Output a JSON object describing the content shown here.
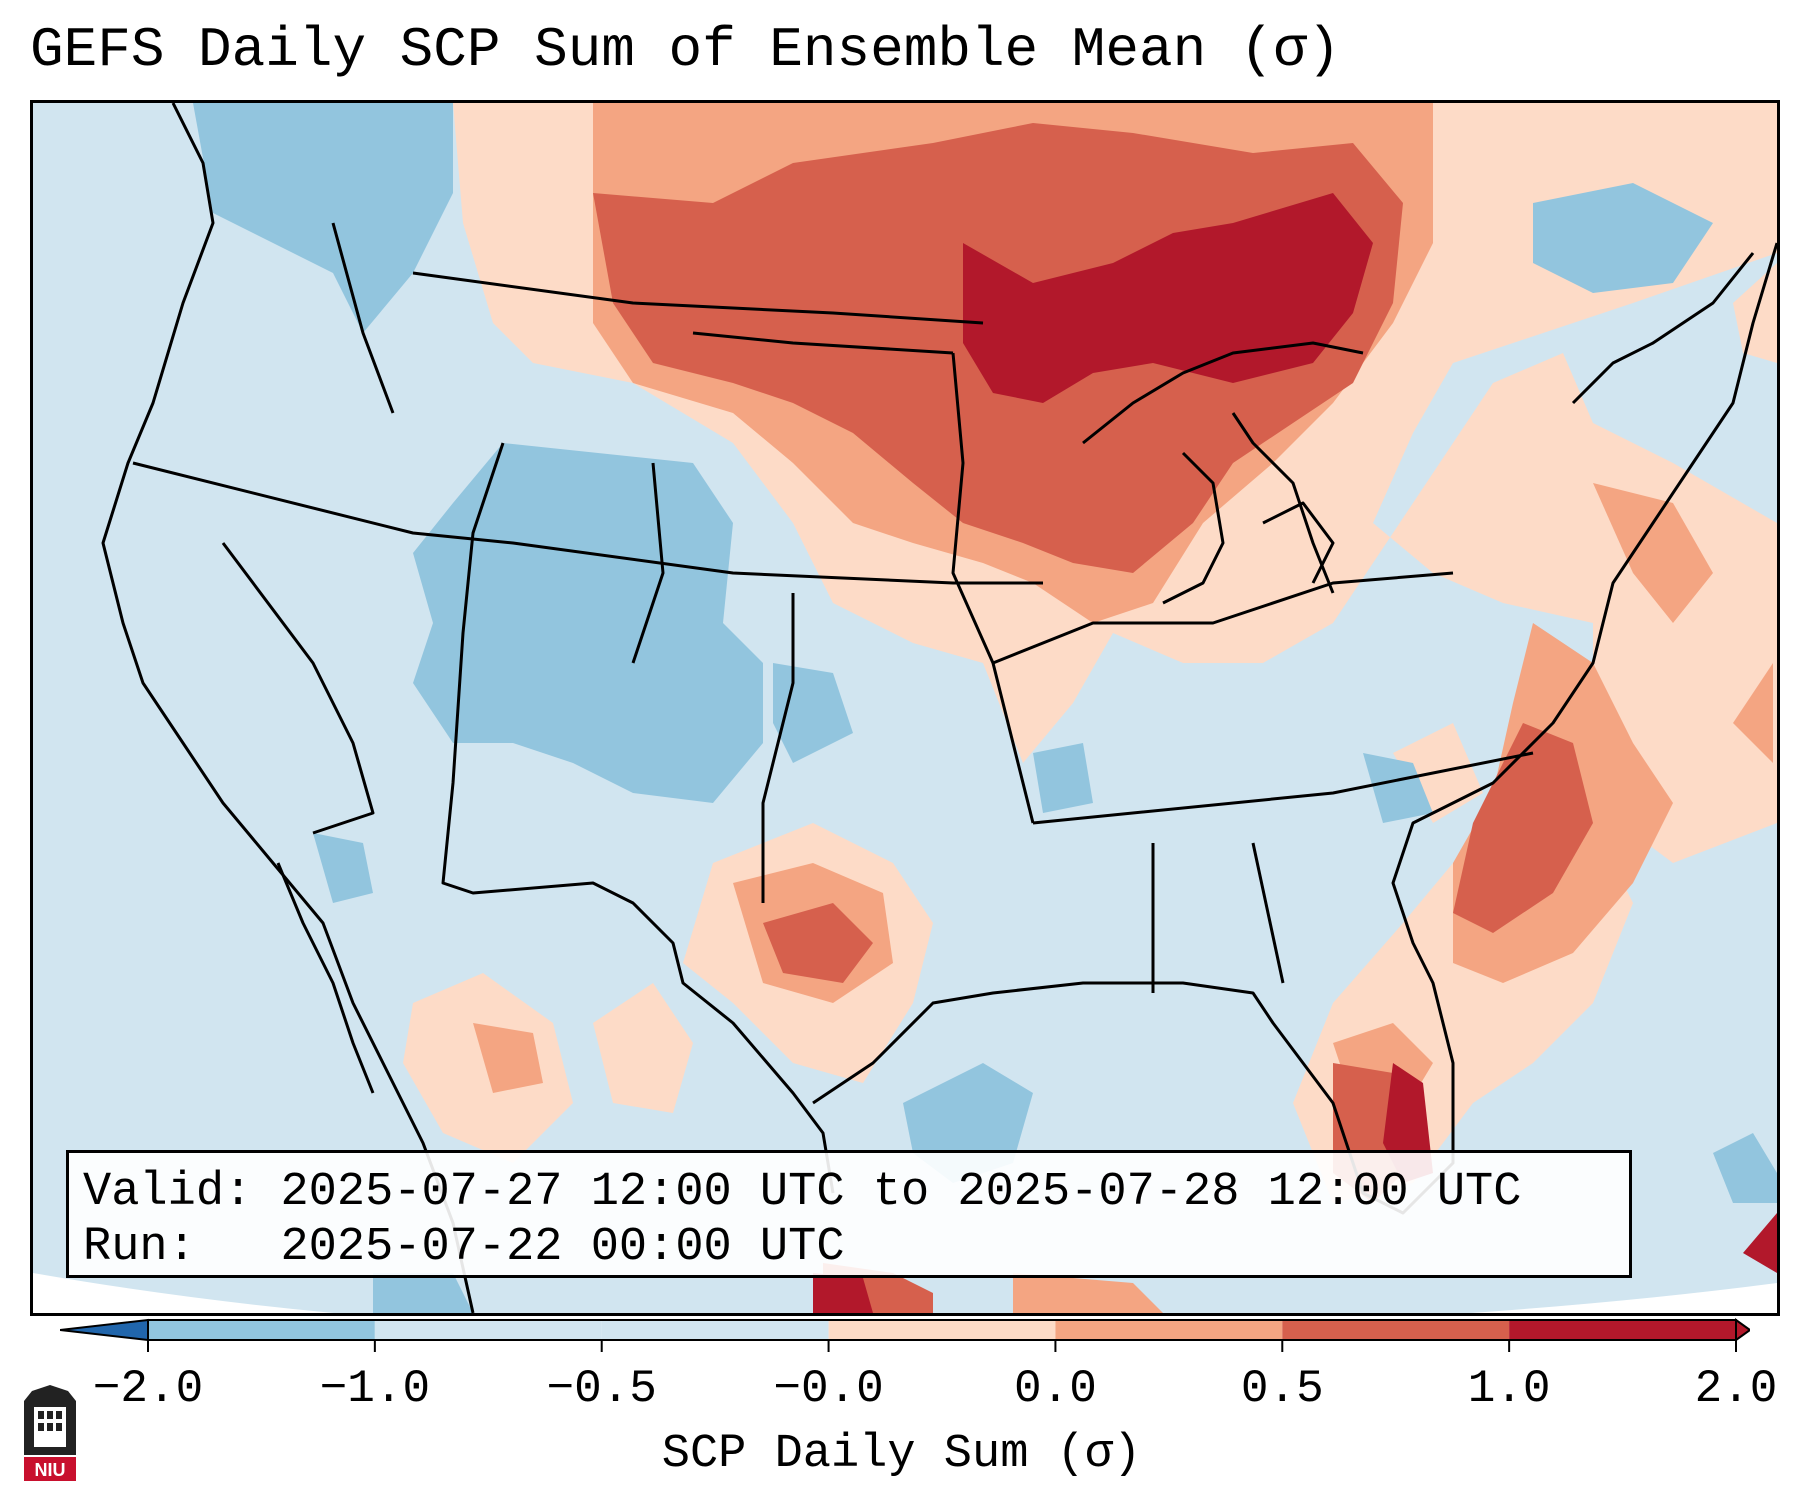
{
  "title": "GEFS Daily SCP Sum of Ensemble Mean (σ)",
  "info": {
    "valid_label": "Valid:",
    "valid_value": "2025-07-27 12:00 UTC to 2025-07-28 12:00 UTC",
    "run_label": "Run:",
    "run_value": "2025-07-22 00:00 UTC"
  },
  "colorbar": {
    "label": "SCP Daily Sum (σ)",
    "ticks": [
      "−2.0",
      "−1.0",
      "−0.5",
      "−0.0",
      "0.0",
      "0.5",
      "1.0",
      "2.0"
    ],
    "colors": [
      "#4393c3",
      "#92c5de",
      "#d1e5f0",
      "#d1e5f0",
      "#fddbc7",
      "#f4a582",
      "#d6604d",
      "#b2182b"
    ],
    "extend_low_color": "#2166ac",
    "extend_high_color": "#b2182b"
  },
  "logo": {
    "text": "NIU",
    "color": "#c8102e"
  },
  "colors": {
    "background_fill": "#d1e5f0",
    "outline": "#000000"
  }
}
